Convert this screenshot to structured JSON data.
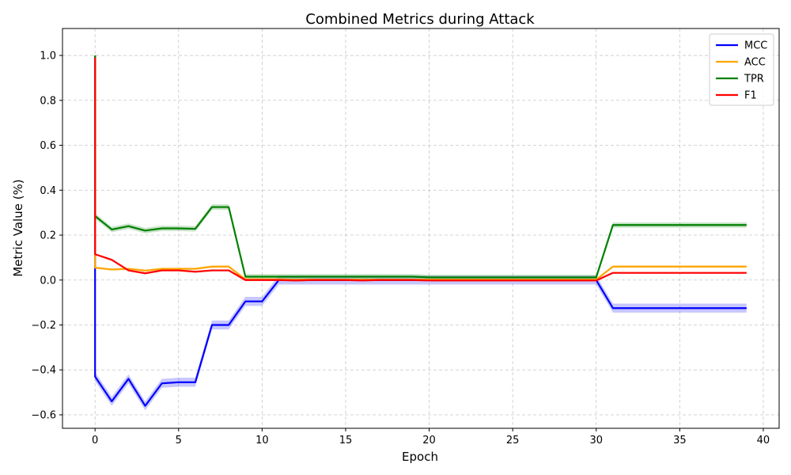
{
  "chart_data": {
    "type": "line",
    "title": "Combined Metrics during Attack",
    "xlabel": "Epoch",
    "ylabel": "Metric Value (%)",
    "xlim": [
      -1.95,
      40.95
    ],
    "ylim": [
      -0.66,
      1.12
    ],
    "xticks": [
      0,
      5,
      10,
      15,
      20,
      25,
      30,
      35,
      40
    ],
    "yticks": [
      -0.6,
      -0.4,
      -0.2,
      0.0,
      0.2,
      0.4,
      0.6,
      0.8,
      1.0
    ],
    "xtick_labels": [
      "0",
      "5",
      "10",
      "15",
      "20",
      "25",
      "30",
      "35",
      "40"
    ],
    "ytick_labels": [
      "−0.6",
      "−0.4",
      "−0.2",
      "0.0",
      "0.2",
      "0.4",
      "0.6",
      "0.8",
      "1.0"
    ],
    "grid": true,
    "legend_position": "top-right",
    "series": [
      {
        "name": "MCC",
        "color": "#0000ff",
        "band": 0.02,
        "points": [
          [
            0,
            1.0
          ],
          [
            0,
            -0.43
          ],
          [
            1,
            -0.54
          ],
          [
            2,
            -0.44
          ],
          [
            3,
            -0.56
          ],
          [
            4,
            -0.46
          ],
          [
            5,
            -0.455
          ],
          [
            6,
            -0.455
          ],
          [
            7,
            -0.2
          ],
          [
            8,
            -0.2
          ],
          [
            9,
            -0.095
          ],
          [
            10,
            -0.095
          ],
          [
            11,
            0.0
          ],
          [
            12,
            0.0
          ],
          [
            13,
            0.0
          ],
          [
            14,
            0.0
          ],
          [
            15,
            0.0
          ],
          [
            16,
            0.0
          ],
          [
            17,
            0.0
          ],
          [
            18,
            0.0
          ],
          [
            19,
            0.0
          ],
          [
            20,
            0.0
          ],
          [
            21,
            0.0
          ],
          [
            22,
            0.0
          ],
          [
            23,
            0.0
          ],
          [
            24,
            0.0
          ],
          [
            25,
            0.0
          ],
          [
            26,
            0.0
          ],
          [
            27,
            0.0
          ],
          [
            28,
            0.0
          ],
          [
            29,
            0.0
          ],
          [
            30,
            0.0
          ],
          [
            31,
            -0.125
          ],
          [
            32,
            -0.125
          ],
          [
            33,
            -0.125
          ],
          [
            34,
            -0.125
          ],
          [
            35,
            -0.125
          ],
          [
            36,
            -0.125
          ],
          [
            37,
            -0.125
          ],
          [
            38,
            -0.125
          ],
          [
            39,
            -0.125
          ]
        ]
      },
      {
        "name": "ACC",
        "color": "#ffa500",
        "band": 0.005,
        "points": [
          [
            0,
            1.0
          ],
          [
            0,
            0.055
          ],
          [
            1,
            0.047
          ],
          [
            2,
            0.05
          ],
          [
            3,
            0.042
          ],
          [
            4,
            0.05
          ],
          [
            5,
            0.05
          ],
          [
            6,
            0.05
          ],
          [
            7,
            0.06
          ],
          [
            8,
            0.06
          ],
          [
            9,
            0.003
          ],
          [
            10,
            0.003
          ],
          [
            11,
            0.003
          ],
          [
            12,
            0.002
          ],
          [
            13,
            0.002
          ],
          [
            14,
            0.002
          ],
          [
            15,
            0.002
          ],
          [
            16,
            0.002
          ],
          [
            17,
            0.002
          ],
          [
            18,
            0.002
          ],
          [
            19,
            0.002
          ],
          [
            20,
            0.002
          ],
          [
            21,
            0.002
          ],
          [
            22,
            0.002
          ],
          [
            23,
            0.002
          ],
          [
            24,
            0.002
          ],
          [
            25,
            0.002
          ],
          [
            26,
            0.002
          ],
          [
            27,
            0.002
          ],
          [
            28,
            0.002
          ],
          [
            29,
            0.002
          ],
          [
            30,
            0.002
          ],
          [
            31,
            0.06
          ],
          [
            32,
            0.06
          ],
          [
            33,
            0.06
          ],
          [
            34,
            0.06
          ],
          [
            35,
            0.06
          ],
          [
            36,
            0.06
          ],
          [
            37,
            0.06
          ],
          [
            38,
            0.06
          ],
          [
            39,
            0.06
          ]
        ]
      },
      {
        "name": "TPR",
        "color": "#008000",
        "band": 0.012,
        "points": [
          [
            0,
            1.0
          ],
          [
            0,
            0.285
          ],
          [
            1,
            0.225
          ],
          [
            2,
            0.24
          ],
          [
            3,
            0.22
          ],
          [
            4,
            0.23
          ],
          [
            5,
            0.23
          ],
          [
            6,
            0.228
          ],
          [
            7,
            0.325
          ],
          [
            8,
            0.325
          ],
          [
            9,
            0.015
          ],
          [
            10,
            0.015
          ],
          [
            11,
            0.015
          ],
          [
            12,
            0.015
          ],
          [
            13,
            0.015
          ],
          [
            14,
            0.015
          ],
          [
            15,
            0.015
          ],
          [
            16,
            0.015
          ],
          [
            17,
            0.015
          ],
          [
            18,
            0.015
          ],
          [
            19,
            0.015
          ],
          [
            20,
            0.012
          ],
          [
            21,
            0.012
          ],
          [
            22,
            0.012
          ],
          [
            23,
            0.012
          ],
          [
            24,
            0.012
          ],
          [
            25,
            0.012
          ],
          [
            26,
            0.012
          ],
          [
            27,
            0.012
          ],
          [
            28,
            0.012
          ],
          [
            29,
            0.012
          ],
          [
            30,
            0.012
          ],
          [
            31,
            0.245
          ],
          [
            32,
            0.245
          ],
          [
            33,
            0.245
          ],
          [
            34,
            0.245
          ],
          [
            35,
            0.245
          ],
          [
            36,
            0.245
          ],
          [
            37,
            0.245
          ],
          [
            38,
            0.245
          ],
          [
            39,
            0.245
          ]
        ]
      },
      {
        "name": "F1",
        "color": "#ff0000",
        "band": 0.004,
        "points": [
          [
            0,
            0.99
          ],
          [
            0,
            0.115
          ],
          [
            1,
            0.09
          ],
          [
            2,
            0.043
          ],
          [
            3,
            0.03
          ],
          [
            4,
            0.043
          ],
          [
            5,
            0.043
          ],
          [
            6,
            0.037
          ],
          [
            7,
            0.043
          ],
          [
            8,
            0.043
          ],
          [
            9,
            0.0
          ],
          [
            10,
            0.0
          ],
          [
            11,
            0.0
          ],
          [
            12,
            -0.002
          ],
          [
            13,
            0.0
          ],
          [
            14,
            0.0
          ],
          [
            15,
            0.0
          ],
          [
            16,
            -0.002
          ],
          [
            17,
            0.0
          ],
          [
            18,
            0.0
          ],
          [
            19,
            0.0
          ],
          [
            20,
            -0.002
          ],
          [
            21,
            -0.002
          ],
          [
            22,
            -0.002
          ],
          [
            23,
            -0.002
          ],
          [
            24,
            -0.002
          ],
          [
            25,
            -0.002
          ],
          [
            26,
            -0.002
          ],
          [
            27,
            -0.002
          ],
          [
            28,
            -0.002
          ],
          [
            29,
            -0.002
          ],
          [
            30,
            -0.002
          ],
          [
            31,
            0.032
          ],
          [
            32,
            0.032
          ],
          [
            33,
            0.032
          ],
          [
            34,
            0.032
          ],
          [
            35,
            0.032
          ],
          [
            36,
            0.032
          ],
          [
            37,
            0.032
          ],
          [
            38,
            0.032
          ],
          [
            39,
            0.032
          ]
        ]
      }
    ]
  }
}
